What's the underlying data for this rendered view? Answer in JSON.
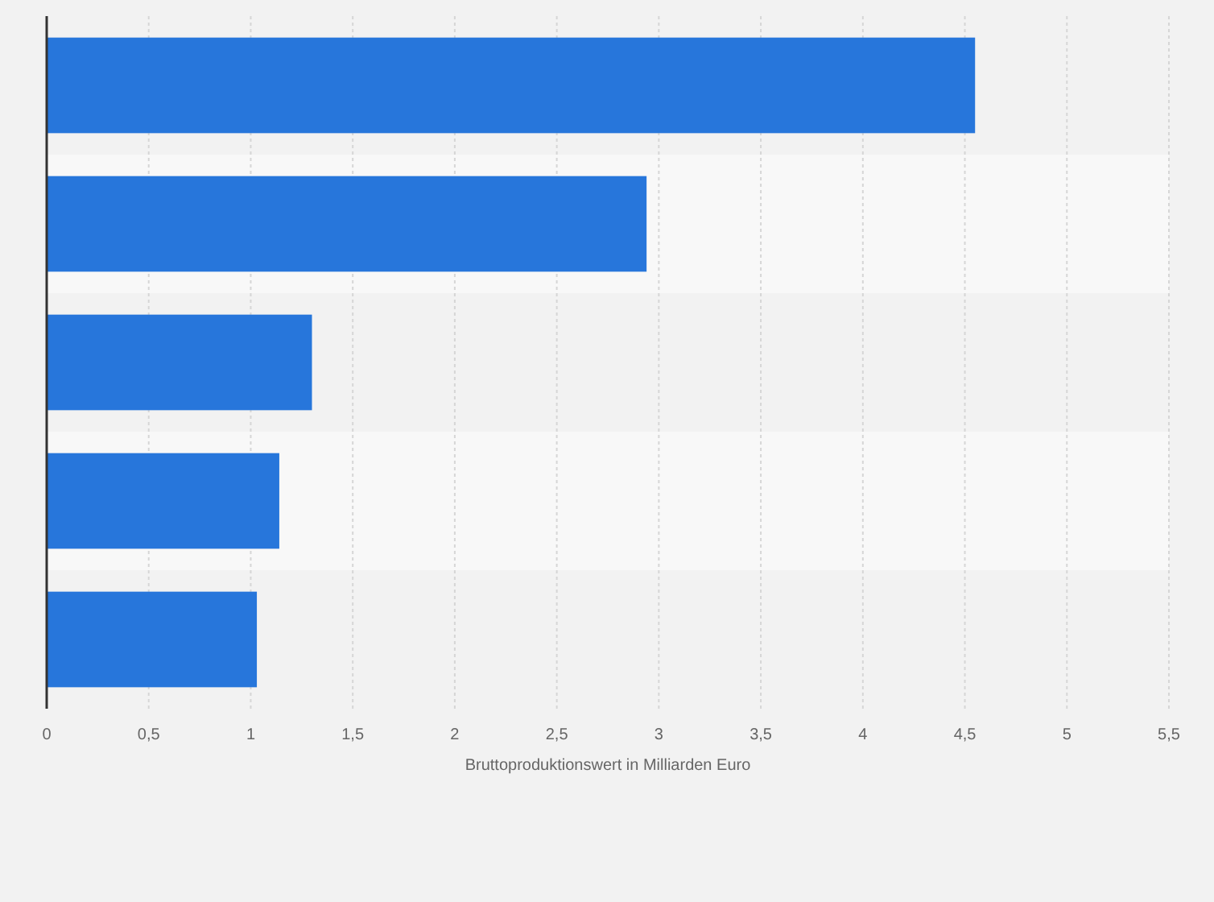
{
  "chart_data": {
    "type": "bar",
    "orientation": "horizontal",
    "categories": [
      null,
      null,
      null,
      null,
      null
    ],
    "values": [
      4.55,
      2.94,
      1.3,
      1.14,
      1.03
    ],
    "color": "#2776db",
    "xlabel": "Bruttoproduktionswert in Milliarden Euro",
    "xlim": [
      0,
      5.5
    ],
    "xticks": [
      0,
      {
        "value": 0.5,
        "label": "0,5"
      },
      1,
      {
        "value": 1.5,
        "label": "1,5"
      },
      2,
      {
        "value": 2.5,
        "label": "2,5"
      },
      3,
      {
        "value": 3.5,
        "label": "3,5"
      },
      4,
      {
        "value": 4.5,
        "label": "4,5"
      },
      5,
      {
        "value": 5.5,
        "label": "5,5"
      }
    ],
    "grid": "x",
    "tick_labels": "x"
  }
}
